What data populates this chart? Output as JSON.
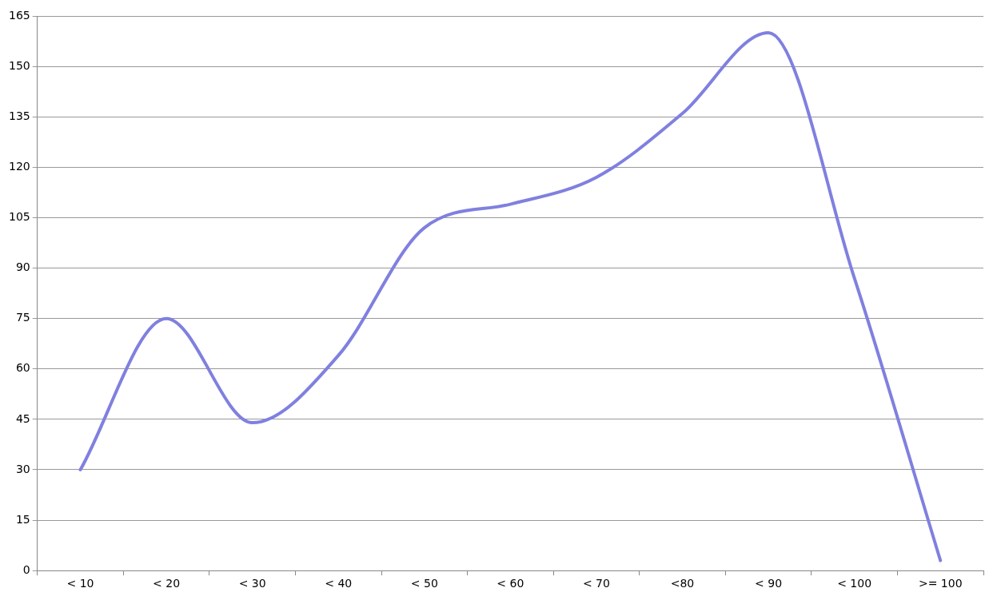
{
  "chart_data": {
    "type": "line",
    "categories": [
      "< 10",
      "< 20",
      "< 30",
      "< 40",
      "< 50",
      "< 60",
      "< 70",
      "<80",
      "< 90",
      "< 100",
      ">= 100"
    ],
    "series": [
      {
        "color": "#8080e0",
        "values": [
          30,
          75,
          44,
          64,
          102,
          109,
          117,
          136,
          160,
          87,
          3
        ]
      }
    ],
    "ylim": [
      0,
      165
    ],
    "yticks": [
      0,
      15,
      30,
      45,
      60,
      75,
      90,
      105,
      120,
      135,
      150,
      165
    ],
    "grid": "y",
    "legend": false,
    "marker": "none",
    "line_style": "solid"
  }
}
